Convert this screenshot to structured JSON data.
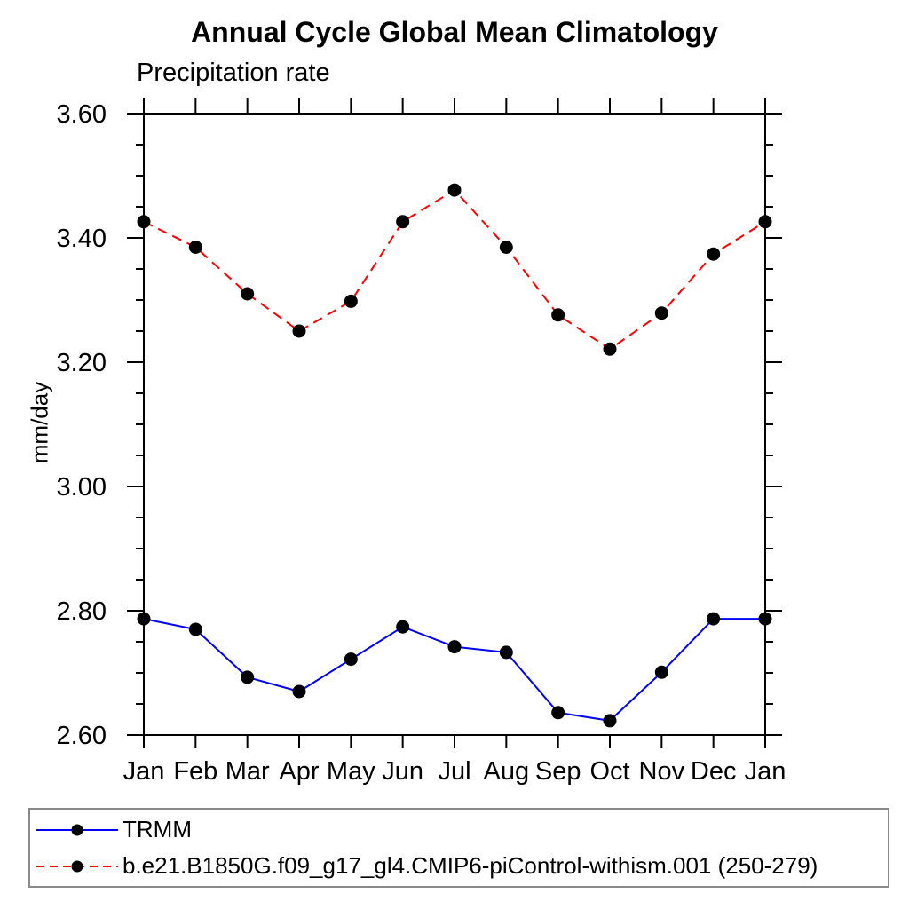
{
  "page": {
    "title": "Annual Cycle Global Mean Climatology",
    "subtitle": "Precipitation rate",
    "ylabel": "mm/day"
  },
  "legend": {
    "items": [
      {
        "label": "TRMM"
      },
      {
        "label": "b.e21.B1850G.f09_g17_gl4.CMIP6-piControl-withism.001 (250-279)"
      }
    ]
  },
  "chart_data": {
    "type": "line",
    "title": "Annual Cycle Global Mean Climatology",
    "subtitle": "Precipitation rate",
    "xlabel": "",
    "ylabel": "mm/day",
    "categories": [
      "Jan",
      "Feb",
      "Mar",
      "Apr",
      "May",
      "Jun",
      "Jul",
      "Aug",
      "Sep",
      "Oct",
      "Nov",
      "Dec",
      "Jan"
    ],
    "ylim": [
      2.6,
      3.6
    ],
    "y_major_step": 0.2,
    "y_minor_step": 0.05,
    "y_tick_labels": [
      "2.60",
      "2.80",
      "3.00",
      "3.20",
      "3.40",
      "3.60"
    ],
    "grid": false,
    "legend_position": "bottom-left-box",
    "axis_color": "#000000",
    "marker_color": "#000000",
    "series": [
      {
        "name": "TRMM",
        "color": "#0000ff",
        "line_style": "solid",
        "marker": "circle",
        "values": [
          2.787,
          2.77,
          2.693,
          2.67,
          2.722,
          2.774,
          2.742,
          2.733,
          2.636,
          2.623,
          2.701,
          2.787,
          2.787
        ]
      },
      {
        "name": "b.e21.B1850G.f09_g17_gl4.CMIP6-piControl-withism.001 (250-279)",
        "color": "#ff0000",
        "line_style": "dashed",
        "marker": "circle",
        "values": [
          3.426,
          3.385,
          3.31,
          3.25,
          3.298,
          3.426,
          3.477,
          3.385,
          3.276,
          3.221,
          3.279,
          3.374,
          3.426
        ]
      }
    ]
  }
}
